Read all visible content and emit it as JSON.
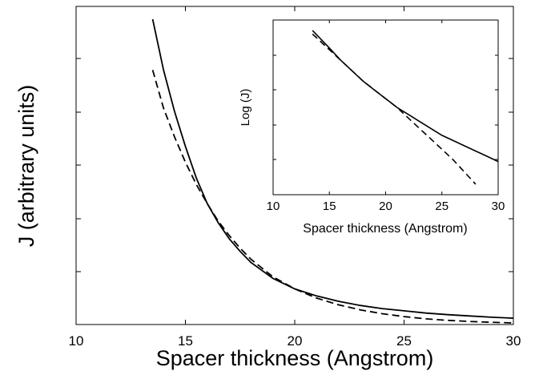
{
  "chart_data": [
    {
      "type": "line",
      "title": "",
      "xlabel": "Spacer thickness (Angstrom)",
      "ylabel": "J (arbitrary units)",
      "xlim": [
        10,
        30
      ],
      "ylim": [
        0,
        1
      ],
      "x_ticks": [
        10,
        15,
        20,
        25,
        30
      ],
      "x_tick_labels": [
        "10",
        "15",
        "20",
        "25",
        "30"
      ],
      "y_tick_labels_shown": false,
      "grid": false,
      "legend": "none",
      "series": [
        {
          "style": "solid",
          "color": "#000000",
          "x": [
            13.5,
            14,
            14.5,
            15,
            15.5,
            16,
            16.5,
            17,
            17.5,
            18,
            19,
            20,
            21,
            22,
            23,
            24,
            25,
            26,
            27,
            28,
            29,
            30
          ],
          "y": [
            0.96,
            0.8,
            0.67,
            0.56,
            0.46,
            0.38,
            0.32,
            0.27,
            0.23,
            0.195,
            0.145,
            0.112,
            0.09,
            0.073,
            0.06,
            0.05,
            0.043,
            0.036,
            0.031,
            0.027,
            0.023,
            0.02
          ]
        },
        {
          "style": "dashed",
          "color": "#000000",
          "x": [
            13.5,
            14,
            14.5,
            15,
            15.5,
            16,
            16.5,
            17,
            17.5,
            18,
            19,
            20,
            21,
            22,
            23,
            24,
            25,
            26,
            27,
            28,
            29,
            30
          ],
          "y": [
            0.8,
            0.68,
            0.59,
            0.51,
            0.44,
            0.38,
            0.325,
            0.28,
            0.24,
            0.205,
            0.15,
            0.112,
            0.083,
            0.062,
            0.046,
            0.034,
            0.025,
            0.018,
            0.013,
            0.0095,
            0.007,
            0.005
          ]
        }
      ]
    },
    {
      "type": "line",
      "title": "",
      "xlabel": "Spacer thickness (Angstrom)",
      "ylabel": "Log (J)",
      "xlim": [
        10,
        30
      ],
      "ylim": [
        0,
        1
      ],
      "x_ticks": [
        10,
        15,
        20,
        25,
        30
      ],
      "x_tick_labels": [
        "10",
        "15",
        "20",
        "25",
        "30"
      ],
      "y_tick_labels_shown": false,
      "grid": false,
      "legend": "none",
      "series": [
        {
          "style": "solid",
          "color": "#000000",
          "x": [
            13.5,
            15,
            16,
            17,
            18,
            19,
            20,
            21,
            22,
            23,
            24,
            25,
            26,
            27,
            28,
            29,
            30
          ],
          "y": [
            0.94,
            0.84,
            0.77,
            0.71,
            0.65,
            0.6,
            0.55,
            0.5,
            0.46,
            0.42,
            0.38,
            0.34,
            0.31,
            0.28,
            0.25,
            0.22,
            0.19
          ]
        },
        {
          "style": "dashed",
          "color": "#000000",
          "x": [
            13.5,
            15,
            16,
            17,
            18,
            19,
            20,
            21,
            22,
            23,
            24,
            25,
            26,
            27,
            28
          ],
          "y": [
            0.92,
            0.83,
            0.77,
            0.71,
            0.65,
            0.6,
            0.55,
            0.5,
            0.44,
            0.38,
            0.32,
            0.26,
            0.2,
            0.13,
            0.06
          ]
        }
      ]
    }
  ]
}
